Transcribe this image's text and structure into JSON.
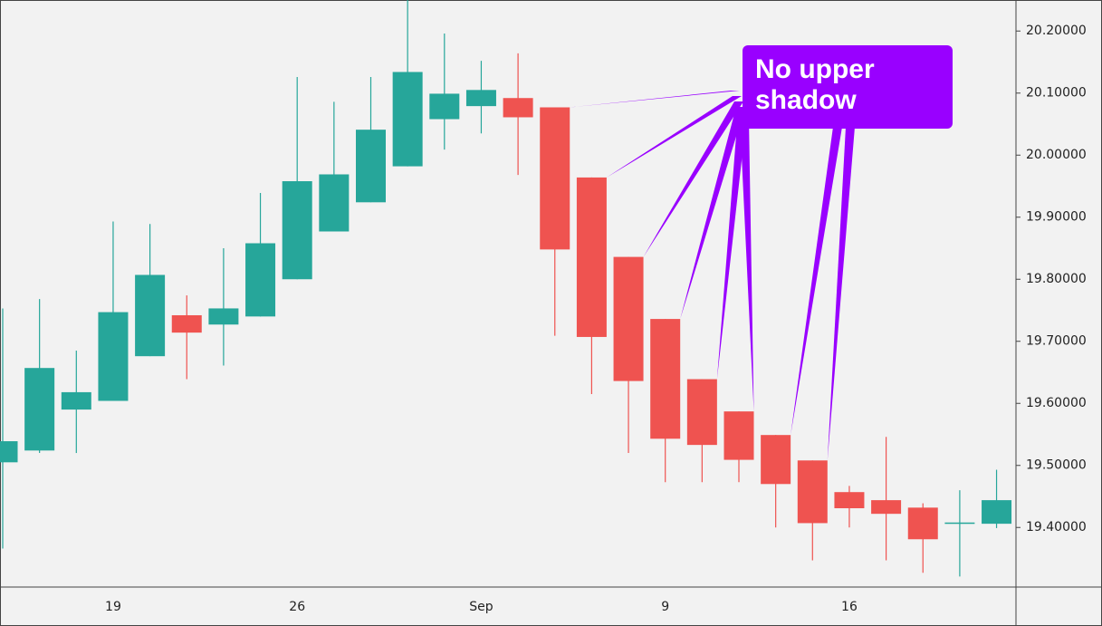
{
  "chart_data": {
    "type": "candlestick",
    "categories": [
      null,
      null,
      null,
      "19",
      null,
      null,
      null,
      null,
      "26",
      null,
      null,
      null,
      null,
      "Sep",
      null,
      null,
      null,
      null,
      "9",
      null,
      null,
      null,
      null,
      "16",
      null,
      null,
      null,
      null
    ],
    "open": [
      19.505,
      19.524,
      19.59,
      19.604,
      19.676,
      19.742,
      19.727,
      19.74,
      19.8,
      19.877,
      19.924,
      19.982,
      20.058,
      20.079,
      20.092,
      20.077,
      19.964,
      19.836,
      19.736,
      19.639,
      19.587,
      19.549,
      19.508,
      19.457,
      19.444,
      19.432,
      19.407,
      19.406
    ],
    "high": [
      19.753,
      19.768,
      19.685,
      19.893,
      19.889,
      19.774,
      19.85,
      19.939,
      20.126,
      20.086,
      20.126,
      20.25,
      20.196,
      20.152,
      20.164,
      20.077,
      19.964,
      19.836,
      19.736,
      19.639,
      19.587,
      19.549,
      19.508,
      19.467,
      19.546,
      19.439,
      19.46,
      19.493
    ],
    "low": [
      19.366,
      19.52,
      19.52,
      19.604,
      19.676,
      19.639,
      19.661,
      19.74,
      19.8,
      19.877,
      19.924,
      19.982,
      20.009,
      20.035,
      19.968,
      19.709,
      19.615,
      19.52,
      19.473,
      19.473,
      19.473,
      19.4,
      19.347,
      19.4,
      19.347,
      19.327,
      19.321,
      19.399
    ],
    "close": [
      19.539,
      19.657,
      19.618,
      19.747,
      19.807,
      19.714,
      19.753,
      19.858,
      19.958,
      19.969,
      20.041,
      20.134,
      20.099,
      20.105,
      20.061,
      19.848,
      19.707,
      19.636,
      19.543,
      19.533,
      19.509,
      19.47,
      19.407,
      19.431,
      19.422,
      19.381,
      19.408,
      19.444
    ],
    "up_color": "#26a69a",
    "down_color": "#ef5350",
    "ylim": [
      19.304,
      20.25
    ],
    "yticks": [
      {
        "value": 19.4,
        "label": "19.40000"
      },
      {
        "value": 19.5,
        "label": "19.50000"
      },
      {
        "value": 19.6,
        "label": "19.60000"
      },
      {
        "value": 19.7,
        "label": "19.70000"
      },
      {
        "value": 19.8,
        "label": "19.80000"
      },
      {
        "value": 19.9,
        "label": "19.90000"
      },
      {
        "value": 20.0,
        "label": "20.00000"
      },
      {
        "value": 20.1,
        "label": "20.10000"
      },
      {
        "value": 20.2,
        "label": "20.20000"
      }
    ],
    "annotation": {
      "text": "No upper shadow",
      "color": "#9900ff",
      "points_to": [
        15,
        16,
        17,
        18,
        19,
        20,
        21,
        22
      ]
    }
  }
}
